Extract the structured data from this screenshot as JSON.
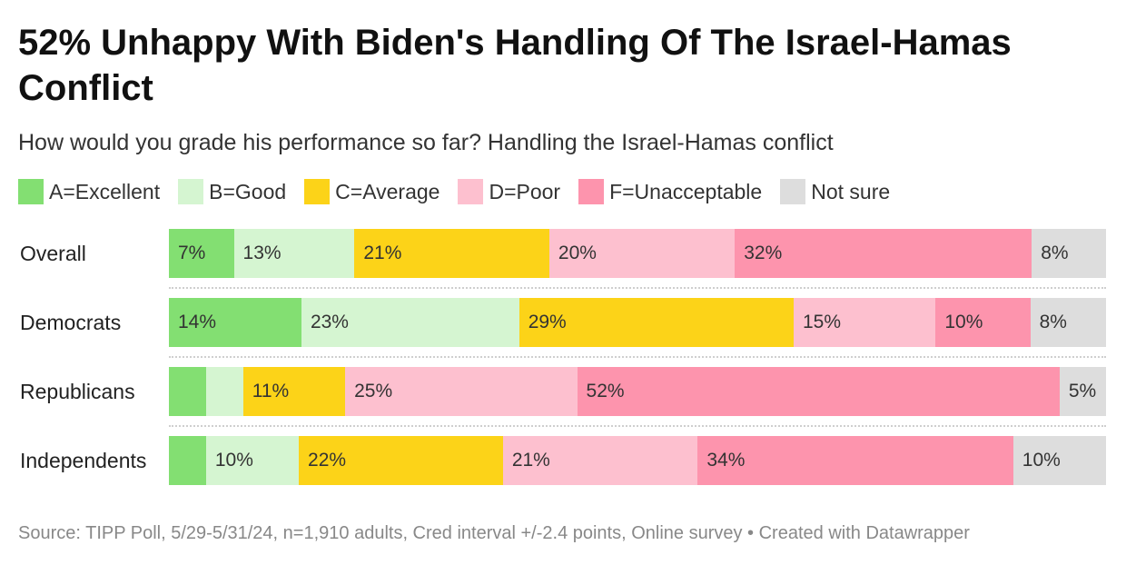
{
  "title": "52% Unhappy With Biden's Handling Of The Israel-Hamas Conflict",
  "subtitle": "How would you grade his performance so far? Handling the Israel-Hamas conflict",
  "legend": [
    {
      "label": "A=Excellent",
      "color": "#83df72"
    },
    {
      "label": "B=Good",
      "color": "#d5f5d1"
    },
    {
      "label": "C=Average",
      "color": "#fcd318"
    },
    {
      "label": "D=Poor",
      "color": "#fdc0cf"
    },
    {
      "label": "F=Unacceptable",
      "color": "#fd94ad"
    },
    {
      "label": "Not sure",
      "color": "#dddddd"
    }
  ],
  "footer": "Source: TIPP Poll, 5/29-5/31/24, n=1,910 adults, Cred interval +/-2.4 points, Online survey • Created with Datawrapper",
  "chart_data": {
    "type": "bar",
    "orientation": "horizontal",
    "stacked": true,
    "title": "52% Unhappy With Biden's Handling Of The Israel-Hamas Conflict",
    "subtitle": "How would you grade his performance so far? Handling the Israel-Hamas conflict",
    "categories": [
      "Overall",
      "Democrats",
      "Republicans",
      "Independents"
    ],
    "value_format": "percent",
    "series": [
      {
        "name": "A=Excellent",
        "values": [
          7,
          14,
          4,
          4
        ],
        "labels": [
          "7%",
          "14%",
          "",
          ""
        ]
      },
      {
        "name": "B=Good",
        "values": [
          13,
          23,
          4,
          10
        ],
        "labels": [
          "13%",
          "23%",
          "",
          "10%"
        ]
      },
      {
        "name": "C=Average",
        "values": [
          21,
          29,
          11,
          22
        ],
        "labels": [
          "21%",
          "29%",
          "11%",
          "22%"
        ]
      },
      {
        "name": "D=Poor",
        "values": [
          20,
          15,
          25,
          21
        ],
        "labels": [
          "20%",
          "15%",
          "25%",
          "21%"
        ]
      },
      {
        "name": "F=Unacceptable",
        "values": [
          32,
          10,
          52,
          34
        ],
        "labels": [
          "32%",
          "10%",
          "52%",
          "34%"
        ]
      },
      {
        "name": "Not sure",
        "values": [
          8,
          8,
          5,
          10
        ],
        "labels": [
          "8%",
          "8%",
          "5%",
          "10%"
        ]
      }
    ],
    "xlim": [
      0,
      100
    ]
  }
}
